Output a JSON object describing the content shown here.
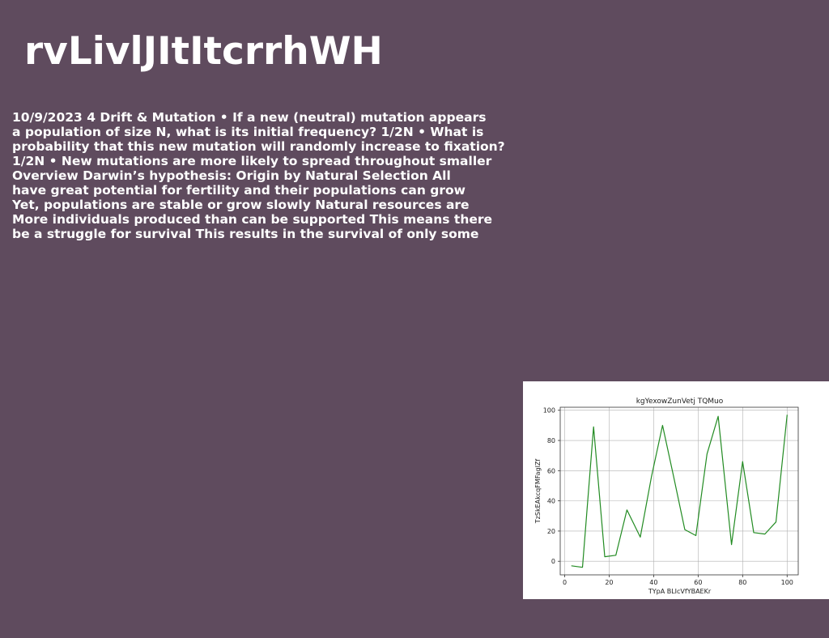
{
  "slide": {
    "title": "rvLivlJItItcrrhWH",
    "body_lines": [
      "10/9/2023 4 Drift & Mutation • If a new (neutral) mutation appears",
      "a population of size N, what is its initial frequency? 1/2N • What is",
      "probability that this new mutation will randomly increase to fixation?",
      "1/2N • New mutations are more likely to spread throughout smaller",
      "Overview Darwin’s hypothesis: Origin by Natural Selection All",
      "have great potential for fertility and their populations can grow",
      "Yet, populations are stable or grow slowly Natural resources are",
      "More individuals produced than can be supported This means there",
      "be a struggle for survival This results in the survival of only some"
    ]
  },
  "chart_data": {
    "type": "line",
    "title": "kgYexowZunVetj TQMuo",
    "xlabel": "TYpA BLIcVfYBAEKr",
    "ylabel": "TzSkEAkcqFMFagIZf",
    "xlim": [
      -2,
      105
    ],
    "ylim": [
      -9,
      102
    ],
    "xticks": [
      0,
      20,
      40,
      60,
      80,
      100
    ],
    "yticks": [
      0,
      20,
      40,
      60,
      80,
      100
    ],
    "grid": true,
    "line_color": "#228B22",
    "series": [
      {
        "x": [
          3,
          8,
          13,
          18,
          23,
          28,
          34,
          39,
          44,
          49,
          54,
          59,
          64,
          69,
          75,
          80,
          85,
          90,
          95,
          100
        ],
        "y": [
          -3,
          -4,
          89,
          3,
          4,
          34,
          16,
          56,
          90,
          56,
          21,
          17,
          71,
          96,
          11,
          66,
          19,
          18,
          26,
          97
        ]
      }
    ]
  }
}
